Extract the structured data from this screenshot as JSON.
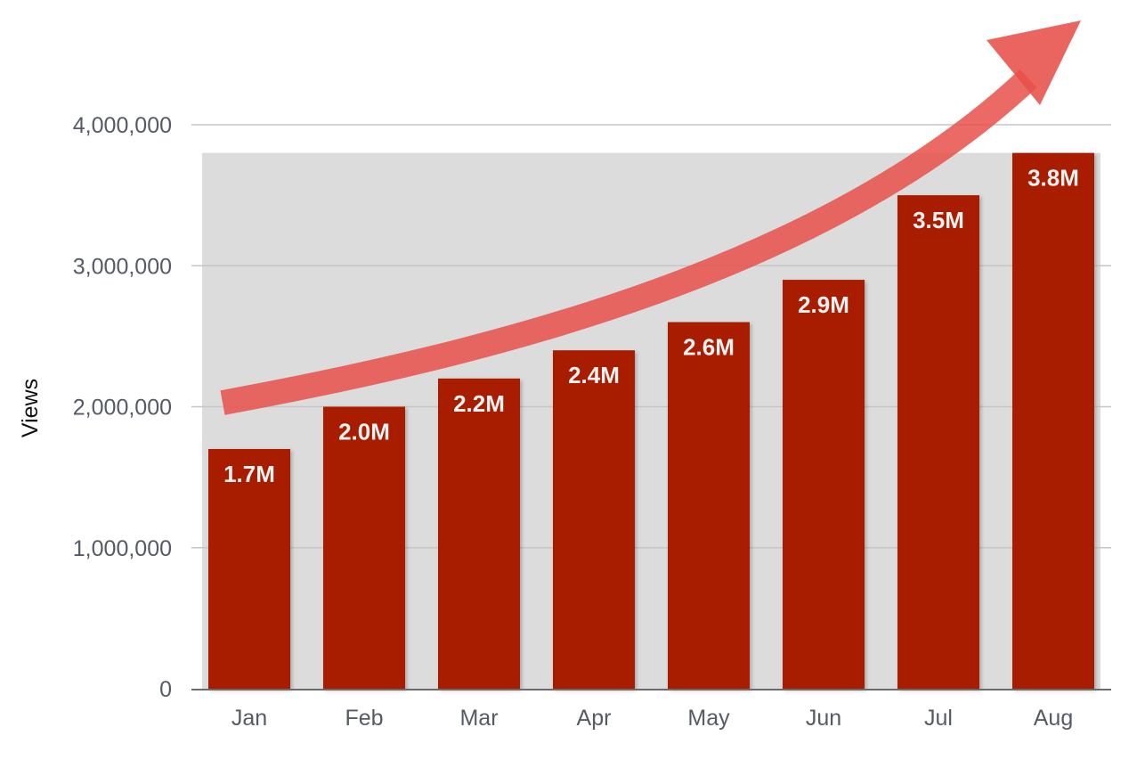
{
  "chart_data": {
    "type": "bar",
    "title": "",
    "xlabel": "",
    "ylabel": "Views",
    "categories": [
      "Jan",
      "Feb",
      "Mar",
      "Apr",
      "May",
      "Jun",
      "Jul",
      "Aug"
    ],
    "values": [
      1700000,
      2000000,
      2200000,
      2400000,
      2600000,
      2900000,
      3500000,
      3800000
    ],
    "data_labels": [
      "1.7M",
      "2.0M",
      "2.2M",
      "2.4M",
      "2.6M",
      "2.9M",
      "3.5M",
      "3.8M"
    ],
    "y_ticks": [
      0,
      1000000,
      2000000,
      3000000,
      4000000
    ],
    "y_tick_labels": [
      "0",
      "1,000,000",
      "2,000,000",
      "3,000,000",
      "4,000,000"
    ],
    "ylim": [
      0,
      4000000
    ],
    "grid": true,
    "legend": "none",
    "annotation": "upward trend arrow",
    "colors": {
      "bar": "#a81f05",
      "plot_background": "#dcdcdc",
      "gridline": "#c6c6c6",
      "arrow": "#e8504a",
      "bar_label": "#f1f1f1"
    }
  }
}
